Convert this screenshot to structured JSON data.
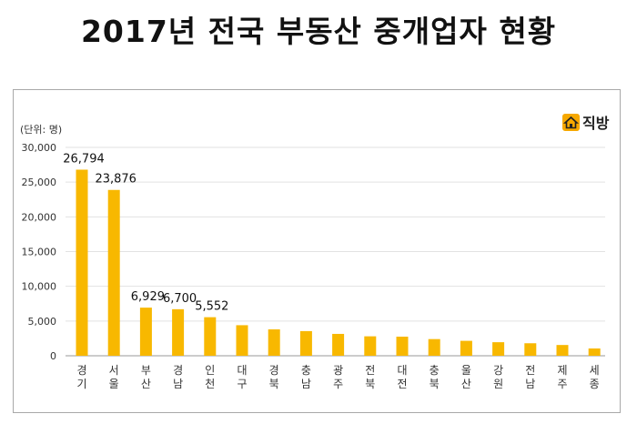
{
  "chart_data": {
    "type": "bar",
    "title": "2017년 전국 부동산 중개업자 현황",
    "unit_label": "(단위: 명)",
    "categories": [
      "경기",
      "서울",
      "부산",
      "경남",
      "인천",
      "대구",
      "경북",
      "충남",
      "광주",
      "전북",
      "대전",
      "충북",
      "울산",
      "강원",
      "전남",
      "제주",
      "세종"
    ],
    "values": [
      26794,
      23876,
      6929,
      6700,
      5552,
      4400,
      3800,
      3550,
      3150,
      2800,
      2750,
      2400,
      2150,
      1950,
      1800,
      1550,
      1050
    ],
    "data_labels": [
      "26,794",
      "23,876",
      "6,929",
      "6,700",
      "5,552",
      "",
      "",
      "",
      "",
      "",
      "",
      "",
      "",
      "",
      "",
      "",
      ""
    ],
    "yticks": [
      "0",
      "5,000",
      "10,000",
      "15,000",
      "20,000",
      "25,000",
      "30,000"
    ],
    "ylim": [
      0,
      30000
    ],
    "grid": "horizontal",
    "bar_color": "#f8b800",
    "legend": "none"
  },
  "brand": {
    "name": "직방",
    "icon": "house-icon",
    "color": "#f6a800"
  }
}
